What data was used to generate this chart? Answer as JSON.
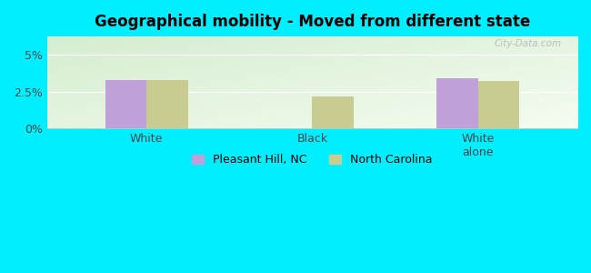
{
  "title": "Geographical mobility - Moved from different state",
  "categories": [
    "White",
    "Black",
    "White\nalone"
  ],
  "pleasant_hill_values": [
    3.3,
    0.0,
    3.4
  ],
  "north_carolina_values": [
    3.3,
    2.2,
    3.2
  ],
  "pleasant_hill_color": "#c0a0d8",
  "north_carolina_color": "#c8cc90",
  "ylim": [
    0,
    6.25
  ],
  "yticks": [
    0,
    2.5,
    5.0
  ],
  "ytick_labels": [
    "0%",
    "2.5%",
    "5%"
  ],
  "outer_bg": "#00eeff",
  "bar_width": 0.25,
  "legend_labels": [
    "Pleasant Hill, NC",
    "North Carolina"
  ],
  "watermark": "City-Data.com"
}
